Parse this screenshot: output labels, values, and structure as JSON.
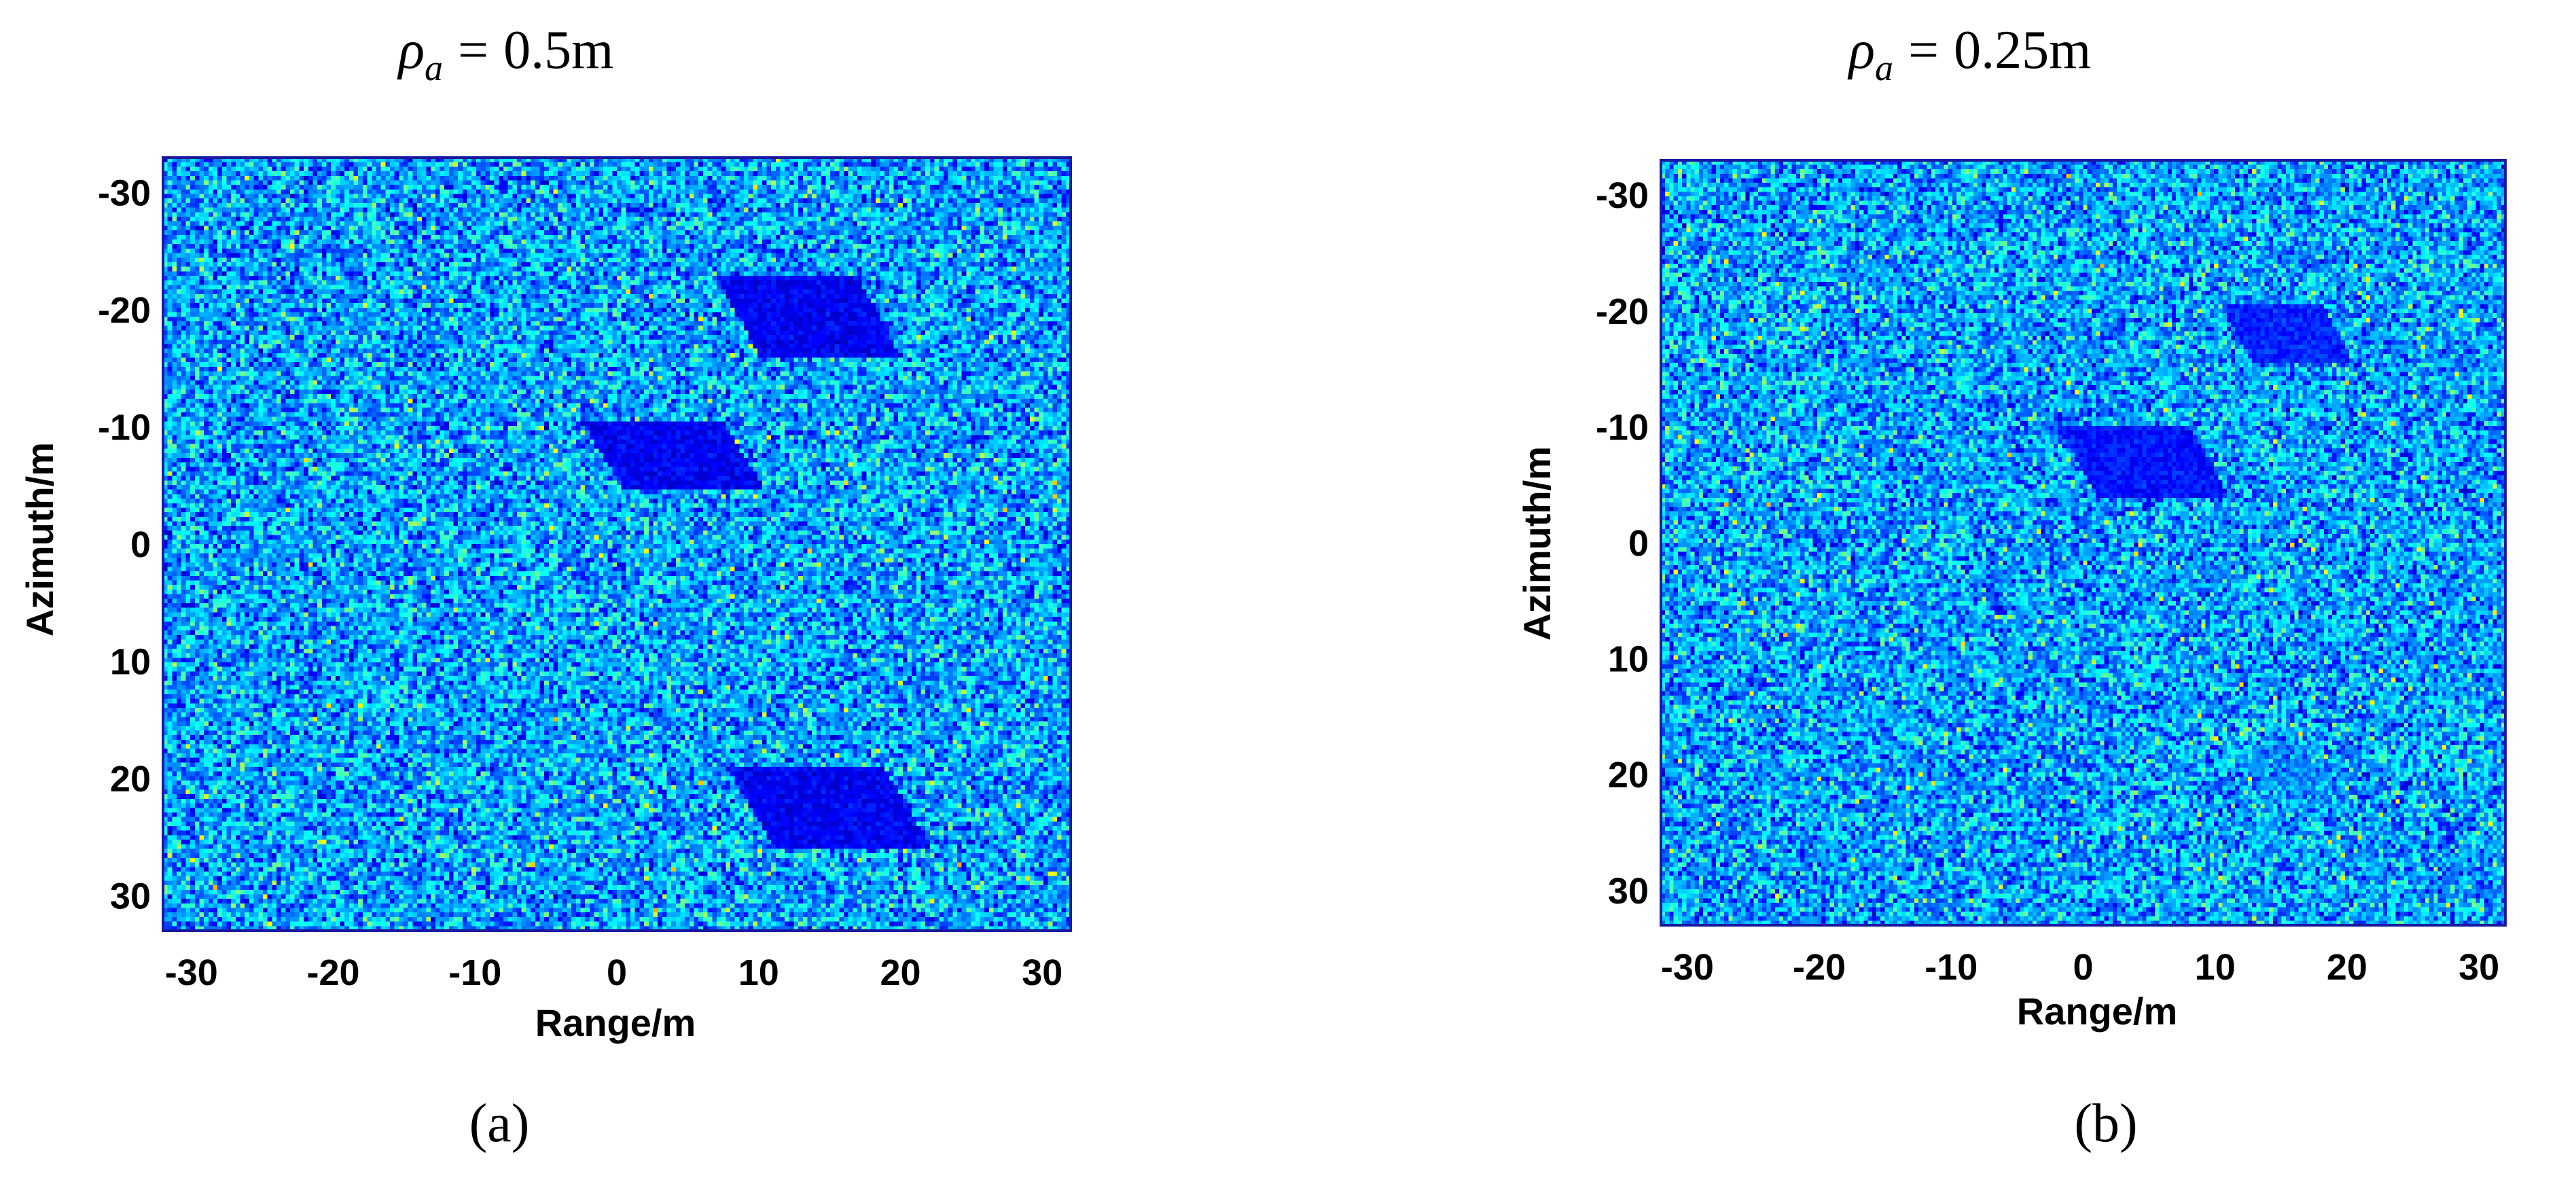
{
  "chart_data": [
    {
      "type": "heatmap",
      "panel_label": "(a)",
      "title": {
        "symbol": "ρ",
        "subscript": "a",
        "equals": "=",
        "value": "0.5m"
      },
      "xlabel": "Range/m",
      "ylabel": "Azimuth/m",
      "xlim": [
        -32,
        32
      ],
      "ylim": [
        -33,
        33
      ],
      "y_inverted": true,
      "xticks": [
        -30,
        -20,
        -10,
        0,
        10,
        20,
        30
      ],
      "yticks": [
        -30,
        -20,
        -10,
        0,
        10,
        20,
        30
      ],
      "colormap": "jet",
      "background": "random speckle clutter (mean ≈ 0.35 of colormap range)",
      "targets": [
        {
          "shape": "parallelogram",
          "center_range": 13.5,
          "center_azimuth": -19.5,
          "width_range": 9,
          "height_azimuth": 7,
          "level": 0.05
        },
        {
          "shape": "parallelogram",
          "center_range": 4,
          "center_azimuth": -7.5,
          "width_range": 9,
          "height_azimuth": 6,
          "level": 0.05
        },
        {
          "shape": "parallelogram",
          "center_range": 15,
          "center_azimuth": 22.5,
          "width_range": 10,
          "height_azimuth": 7,
          "level": 0.05
        }
      ]
    },
    {
      "type": "heatmap",
      "panel_label": "(b)",
      "title": {
        "symbol": "ρ",
        "subscript": "a",
        "equals": "=",
        "value": "0.25m"
      },
      "xlabel": "Range/m",
      "ylabel": "Azimuth/m",
      "xlim": [
        -32,
        32
      ],
      "ylim": [
        -33,
        33
      ],
      "y_inverted": true,
      "xticks": [
        -30,
        -20,
        -10,
        0,
        10,
        20,
        30
      ],
      "yticks": [
        -30,
        -20,
        -10,
        0,
        10,
        20,
        30
      ],
      "colormap": "jet",
      "background": "random speckle clutter (mean ≈ 0.35 of colormap range)",
      "targets": [
        {
          "shape": "parallelogram",
          "center_range": 15.5,
          "center_azimuth": -18,
          "width_range": 7,
          "height_azimuth": 5,
          "level": 0.1
        },
        {
          "shape": "parallelogram",
          "center_range": 4.5,
          "center_azimuth": -7,
          "width_range": 9,
          "height_azimuth": 6,
          "level": 0.08
        },
        {
          "shape": "diffuse",
          "center_range": 16,
          "center_azimuth": 20,
          "width_range": 9,
          "height_azimuth": 8,
          "level": 0.2
        }
      ]
    }
  ]
}
